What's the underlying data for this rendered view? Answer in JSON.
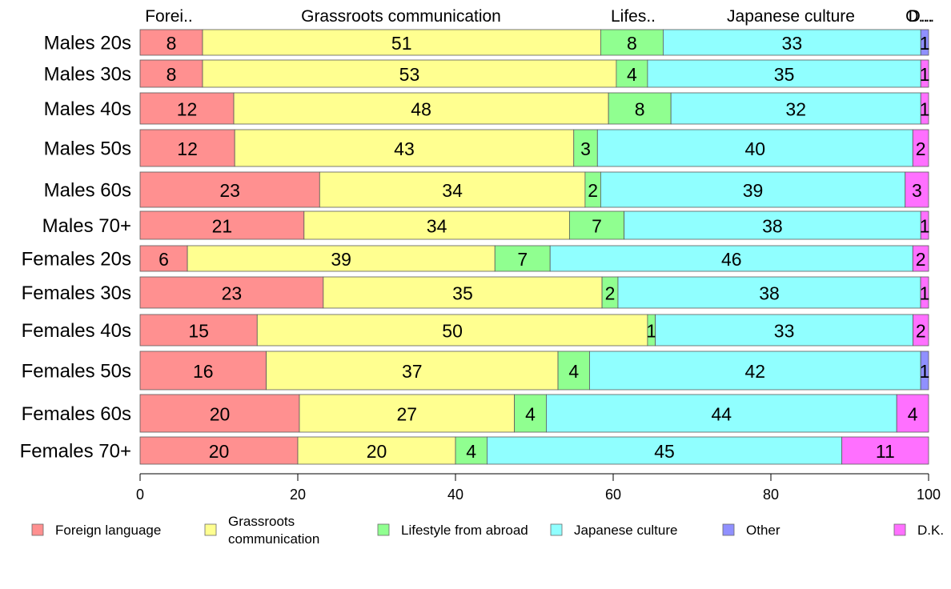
{
  "chart_data": {
    "type": "bar",
    "orientation": "horizontal",
    "stacked": true,
    "xlim": [
      0,
      100
    ],
    "x_ticks": [
      "0",
      "20",
      "40",
      "60",
      "80",
      "100"
    ],
    "grid": false,
    "legend_position": "bottom",
    "top_labels": [
      "Forei..",
      "Grassroots communication",
      "Lifes..",
      "Japanese culture",
      "O...",
      "D..."
    ],
    "categories": [
      "Males 20s",
      "Males 30s",
      "Males 40s",
      "Males 50s",
      "Males 60s",
      "Males 70+",
      "Females 20s",
      "Females 30s",
      "Females 40s",
      "Females 50s",
      "Females 60s",
      "Females 70+"
    ],
    "series": [
      {
        "name": "Foreign language",
        "color": "#ff9090",
        "values": [
          8,
          8,
          12,
          12,
          23,
          21,
          6,
          23,
          15,
          16,
          20,
          20
        ]
      },
      {
        "name": "Grassroots communication",
        "color": "#ffff90",
        "values": [
          51,
          53,
          48,
          43,
          34,
          34,
          39,
          35,
          50,
          37,
          27,
          20
        ]
      },
      {
        "name": "Lifestyle from abroad",
        "color": "#90ff90",
        "values": [
          8,
          4,
          8,
          3,
          2,
          7,
          7,
          2,
          1,
          4,
          4,
          4
        ]
      },
      {
        "name": "Japanese culture",
        "color": "#90ffff",
        "values": [
          33,
          35,
          32,
          40,
          39,
          38,
          46,
          38,
          33,
          42,
          44,
          45
        ]
      },
      {
        "name": "Other",
        "color": "#9090ff",
        "values": [
          1,
          0,
          0,
          0,
          0,
          0,
          0,
          0,
          0,
          1,
          0,
          0
        ]
      },
      {
        "name": "D.K.",
        "color": "#ff70ff",
        "values": [
          0,
          1,
          1,
          2,
          3,
          1,
          2,
          1,
          2,
          0,
          4,
          11
        ]
      }
    ],
    "legend_labels": [
      [
        "Foreign language"
      ],
      [
        "Grassroots",
        "communication"
      ],
      [
        "Lifestyle from abroad"
      ],
      [
        "Japanese culture"
      ],
      [
        "Other"
      ],
      [
        "D.K."
      ]
    ]
  }
}
